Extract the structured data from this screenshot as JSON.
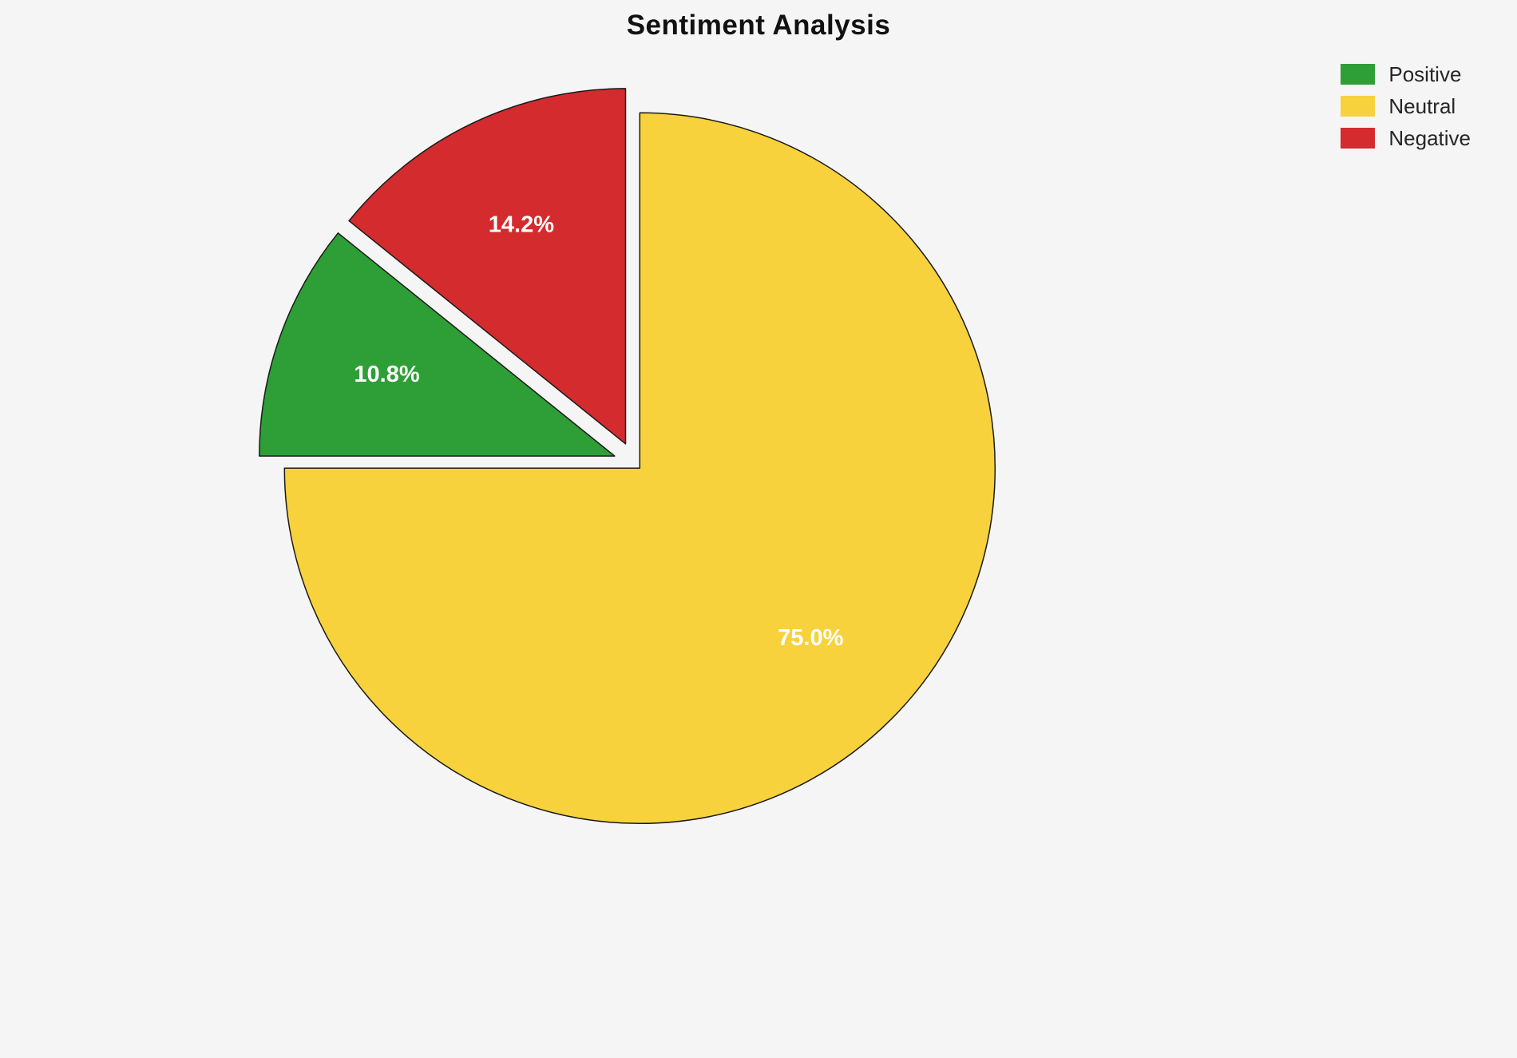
{
  "chart_data": {
    "type": "pie",
    "title": "Sentiment Analysis",
    "categories": [
      "Positive",
      "Neutral",
      "Negative"
    ],
    "values": [
      10.8,
      75.0,
      14.2
    ],
    "labels": [
      "10.8%",
      "75.0%",
      "14.2%"
    ],
    "colors": [
      "#2e9e36",
      "#f8d23c",
      "#d32b2e"
    ],
    "legend_position": "upper right",
    "startangle": 90,
    "direction": "counterclockwise",
    "render_order": [
      2,
      0,
      1
    ],
    "explode": [
      0.06,
      0.02,
      0.06
    ],
    "background": "#f5f5f5",
    "edge_color": "#1a1a1a",
    "label_color": "#ffffff"
  }
}
